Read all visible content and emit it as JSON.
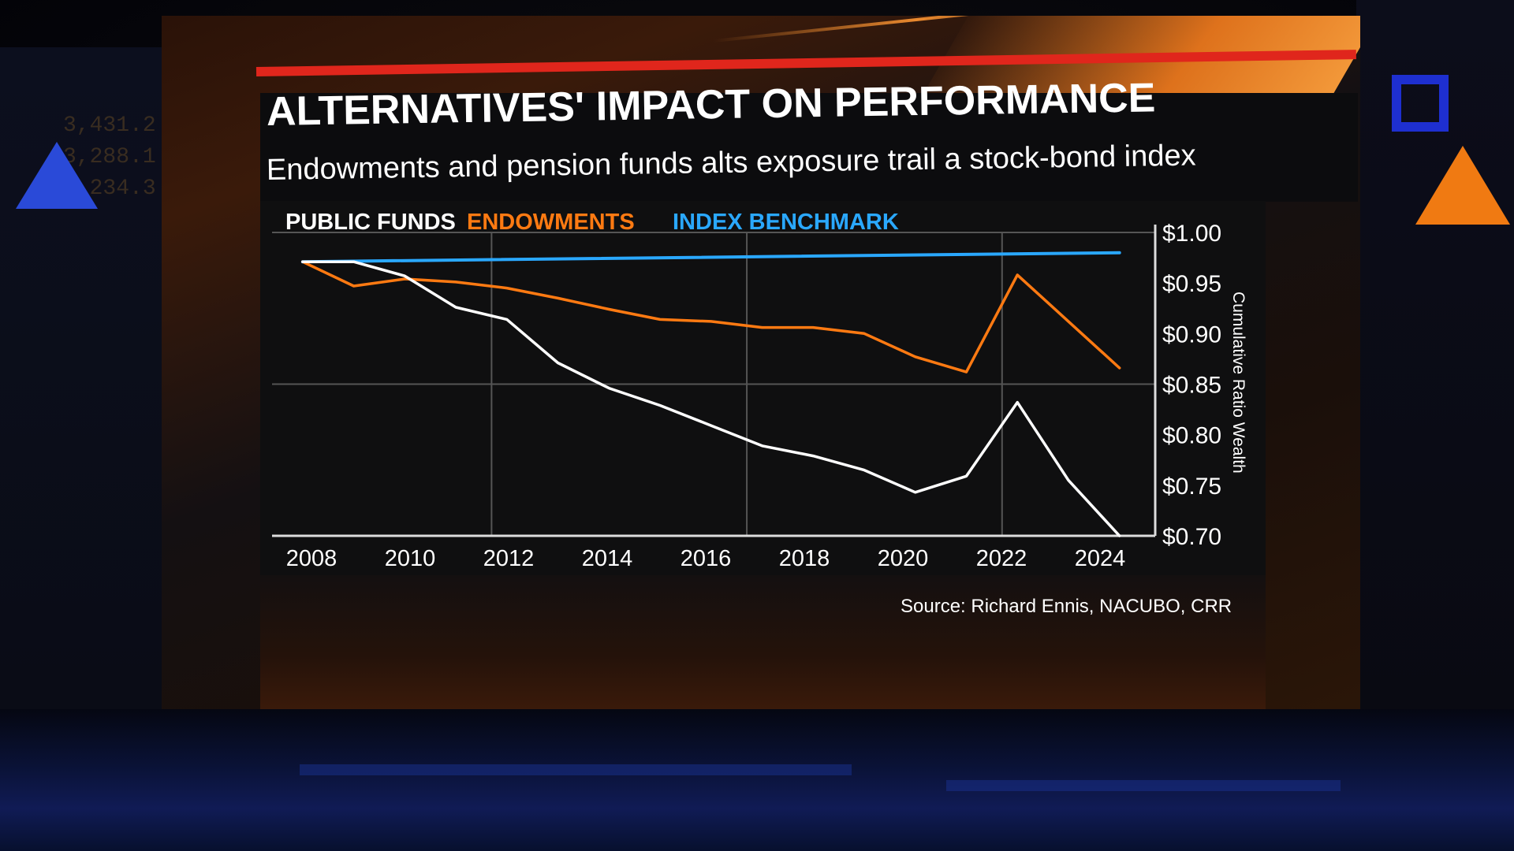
{
  "title": "ALTERNATIVES' IMPACT ON PERFORMANCE",
  "subtitle": "Endowments and pension funds alts exposure trail a stock-bond index",
  "source": "Source: Richard Ennis, NACUBO, CRR",
  "left_ticker": [
    "3,431.2",
    "3,288.1",
    "3,234.3"
  ],
  "colors": {
    "public_funds": "#ffffff",
    "endowments": "#ff7a12",
    "index_benchmark": "#2aa8ff",
    "accent_red": "#e0261c"
  },
  "chart_data": {
    "type": "line",
    "title": "ALTERNATIVES' IMPACT ON PERFORMANCE",
    "subtitle": "Endowments and pension funds alts exposure trail a stock-bond index",
    "xlabel": "",
    "ylabel": "Cumulative Ratio Wealth",
    "x_ticks": [
      "2008",
      "2010",
      "2012",
      "2014",
      "2016",
      "2018",
      "2020",
      "2022",
      "2024"
    ],
    "y_ticks": [
      "$1.00",
      "$0.95",
      "$0.90",
      "$0.85",
      "$0.80",
      "$0.75",
      "$0.70"
    ],
    "ylim": [
      0.7,
      1.0
    ],
    "xlim": [
      2007.3,
      2024.6
    ],
    "legend_position": "top-left",
    "grid": true,
    "series": [
      {
        "name": "PUBLIC FUNDS",
        "color": "#ffffff",
        "x": [
          2007.9,
          2008.9,
          2009.9,
          2010.9,
          2011.9,
          2012.9,
          2013.9,
          2014.9,
          2015.9,
          2016.9,
          2017.9,
          2018.9,
          2019.9,
          2020.9,
          2021.9,
          2022.9,
          2023.9
        ],
        "y": [
          0.971,
          0.971,
          0.957,
          0.926,
          0.914,
          0.871,
          0.846,
          0.829,
          0.809,
          0.789,
          0.779,
          0.765,
          0.743,
          0.759,
          0.832,
          0.755,
          0.7
        ]
      },
      {
        "name": "ENDOWMENTS",
        "color": "#ff7a12",
        "x": [
          2007.9,
          2008.9,
          2009.9,
          2010.9,
          2011.9,
          2012.9,
          2013.9,
          2014.9,
          2015.9,
          2016.9,
          2017.9,
          2018.9,
          2019.9,
          2020.9,
          2021.9,
          2022.9,
          2023.9
        ],
        "y": [
          0.971,
          0.947,
          0.954,
          0.951,
          0.945,
          0.935,
          0.924,
          0.914,
          0.912,
          0.906,
          0.906,
          0.9,
          0.877,
          0.862,
          0.958,
          0.912,
          0.866
        ]
      },
      {
        "name": "INDEX BENCHMARK",
        "color": "#2aa8ff",
        "x": [
          2007.9,
          2023.9
        ],
        "y": [
          0.971,
          0.98
        ]
      }
    ]
  }
}
